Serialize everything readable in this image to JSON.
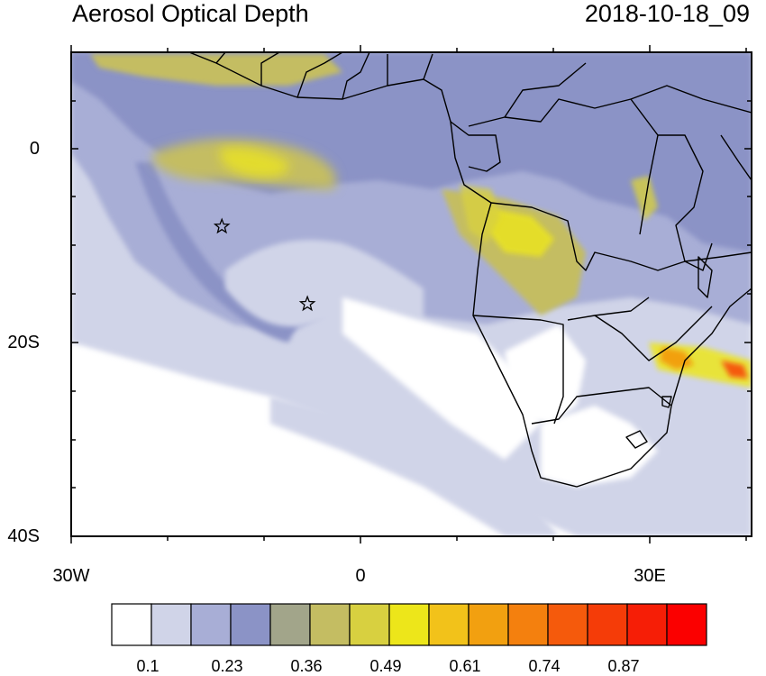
{
  "header": {
    "title": "Aerosol Optical Depth",
    "timestamp": "2018-10-18_09"
  },
  "axes": {
    "y_ticks": [
      "0",
      "20S",
      "40S"
    ],
    "x_ticks": [
      "30W",
      "0",
      "30E"
    ],
    "lat_range": [
      -40,
      10
    ],
    "lon_range": [
      -30,
      40
    ]
  },
  "markers": [
    {
      "name": "star-marker-1",
      "lon": -14.5,
      "lat": -8
    },
    {
      "name": "star-marker-2",
      "lon": -5.7,
      "lat": -16
    }
  ],
  "colorbar": {
    "colors": [
      "#ffffff",
      "#d0d4e8",
      "#a8aed6",
      "#8b93c6",
      "#a2a58a",
      "#c4bd62",
      "#d8d040",
      "#ede61a",
      "#f2c21a",
      "#f2a010",
      "#f4800e",
      "#f55a0c",
      "#f53c08",
      "#f61e06",
      "#fb0000"
    ],
    "labels": [
      "0.1",
      "0.23",
      "0.36",
      "0.49",
      "0.61",
      "0.74",
      "0.87"
    ]
  },
  "palette": {
    "land_border": "#000000",
    "plume_dark": "#8b93c6",
    "plume_mid": "#a8aed6",
    "plume_light": "#d0d4e8",
    "hotspot_yellow": "#e8d83a",
    "hotspot_red": "#f03a10"
  }
}
